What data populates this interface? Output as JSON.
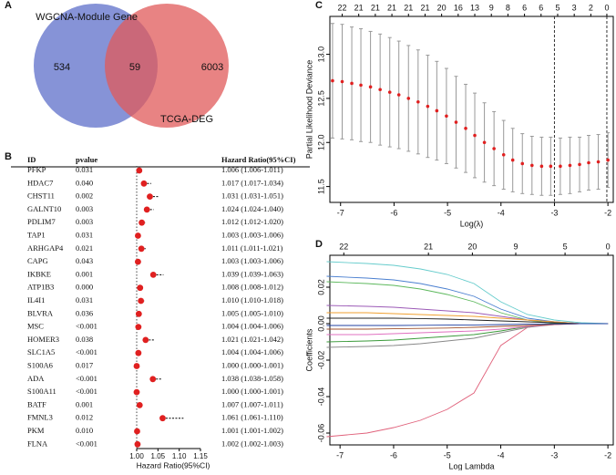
{
  "panel_labels": [
    "A",
    "B",
    "C",
    "D"
  ],
  "chart_data": [
    {
      "type": "venn",
      "sets": [
        {
          "name": "WGCNA-Module Gene",
          "color": "#5e6fc9"
        },
        {
          "name": "TCGA-DEG",
          "color": "#e05a5a"
        }
      ],
      "values": [
        534,
        59,
        6003
      ]
    },
    {
      "type": "forest",
      "columns": [
        "ID",
        "pvalue",
        "Hazard Ratio(95%CI)"
      ],
      "rows": [
        {
          "id": "PFKP",
          "pvalue": "0.031",
          "hr_text": "1.006 (1.006-1.011)",
          "hr": 1.006,
          "lower": 1.006,
          "upper": 1.011
        },
        {
          "id": "HDAC7",
          "pvalue": "0.040",
          "hr_text": "1.017 (1.017-1.034)",
          "hr": 1.017,
          "lower": 1.017,
          "upper": 1.034
        },
        {
          "id": "CHST11",
          "pvalue": "0.002",
          "hr_text": "1.031 (1.031-1.051)",
          "hr": 1.031,
          "lower": 1.031,
          "upper": 1.051
        },
        {
          "id": "GALNT10",
          "pvalue": "0.003",
          "hr_text": "1.024 (1.024-1.040)",
          "hr": 1.024,
          "lower": 1.024,
          "upper": 1.04
        },
        {
          "id": "PDLIM7",
          "pvalue": "0.003",
          "hr_text": "1.012 (1.012-1.020)",
          "hr": 1.012,
          "lower": 1.012,
          "upper": 1.02
        },
        {
          "id": "TAP1",
          "pvalue": "0.031",
          "hr_text": "1.003 (1.003-1.006)",
          "hr": 1.003,
          "lower": 1.003,
          "upper": 1.006
        },
        {
          "id": "ARHGAP4",
          "pvalue": "0.021",
          "hr_text": "1.011 (1.011-1.021)",
          "hr": 1.011,
          "lower": 1.011,
          "upper": 1.021
        },
        {
          "id": "CAPG",
          "pvalue": "0.043",
          "hr_text": "1.003 (1.003-1.006)",
          "hr": 1.003,
          "lower": 1.003,
          "upper": 1.006
        },
        {
          "id": "IKBKE",
          "pvalue": "0.001",
          "hr_text": "1.039 (1.039-1.063)",
          "hr": 1.039,
          "lower": 1.039,
          "upper": 1.063
        },
        {
          "id": "ATP1B3",
          "pvalue": "0.000",
          "hr_text": "1.008 (1.008-1.012)",
          "hr": 1.008,
          "lower": 1.008,
          "upper": 1.012
        },
        {
          "id": "IL4I1",
          "pvalue": "0.031",
          "hr_text": "1.010 (1.010-1.018)",
          "hr": 1.01,
          "lower": 1.01,
          "upper": 1.018
        },
        {
          "id": "BLVRA",
          "pvalue": "0.036",
          "hr_text": "1.005 (1.005-1.010)",
          "hr": 1.005,
          "lower": 1.005,
          "upper": 1.01
        },
        {
          "id": "MSC",
          "pvalue": "<0.001",
          "hr_text": "1.004 (1.004-1.006)",
          "hr": 1.004,
          "lower": 1.004,
          "upper": 1.006
        },
        {
          "id": "HOMER3",
          "pvalue": "0.038",
          "hr_text": "1.021 (1.021-1.042)",
          "hr": 1.021,
          "lower": 1.021,
          "upper": 1.042
        },
        {
          "id": "SLC1A5",
          "pvalue": "<0.001",
          "hr_text": "1.004 (1.004-1.006)",
          "hr": 1.004,
          "lower": 1.004,
          "upper": 1.006
        },
        {
          "id": "S100A6",
          "pvalue": "0.017",
          "hr_text": "1.000 (1.000-1.001)",
          "hr": 1.0,
          "lower": 1.0,
          "upper": 1.001
        },
        {
          "id": "ADA",
          "pvalue": "<0.001",
          "hr_text": "1.038 (1.038-1.058)",
          "hr": 1.038,
          "lower": 1.038,
          "upper": 1.058
        },
        {
          "id": "S100A11",
          "pvalue": "<0.001",
          "hr_text": "1.000 (1.000-1.001)",
          "hr": 1.0,
          "lower": 1.0,
          "upper": 1.001
        },
        {
          "id": "BATF",
          "pvalue": "0.001",
          "hr_text": "1.007 (1.007-1.011)",
          "hr": 1.007,
          "lower": 1.007,
          "upper": 1.011
        },
        {
          "id": "FMNL3",
          "pvalue": "0.012",
          "hr_text": "1.061 (1.061-1.110)",
          "hr": 1.061,
          "lower": 1.061,
          "upper": 1.11
        },
        {
          "id": "PKM",
          "pvalue": "0.010",
          "hr_text": "1.001 (1.001-1.002)",
          "hr": 1.001,
          "lower": 1.001,
          "upper": 1.002
        },
        {
          "id": "FLNA",
          "pvalue": "<0.001",
          "hr_text": "1.002 (1.002-1.003)",
          "hr": 1.002,
          "lower": 1.002,
          "upper": 1.003
        }
      ],
      "xlabel": "Hazard Ratio(95%CI)",
      "xlim": [
        0.985,
        1.165
      ],
      "xticks": [
        {
          "value": 1,
          "label": "1.00"
        },
        {
          "value": 1.05,
          "label": "1.05"
        },
        {
          "value": 1.1,
          "label": "1.10"
        },
        {
          "value": 1.15,
          "label": "1.15"
        }
      ],
      "reference": 1,
      "color": "#e02020"
    },
    {
      "type": "errorbar",
      "xlabel": "Log(λ)",
      "ylabel": "Partial Likelihood Deviance",
      "x": [
        -7.15,
        -6.97,
        -6.79,
        -6.62,
        -6.44,
        -6.26,
        -6.08,
        -5.91,
        -5.73,
        -5.55,
        -5.37,
        -5.2,
        -5.02,
        -4.84,
        -4.66,
        -4.49,
        -4.31,
        -4.13,
        -3.95,
        -3.78,
        -3.6,
        -3.42,
        -3.24,
        -3.07,
        -2.89,
        -2.71,
        -2.53,
        -2.36,
        -2.18,
        -2.0
      ],
      "values": [
        12.7,
        12.69,
        12.67,
        12.65,
        12.63,
        12.6,
        12.57,
        12.54,
        12.5,
        12.46,
        12.41,
        12.36,
        12.3,
        12.23,
        12.16,
        12.08,
        12.0,
        11.93,
        11.86,
        11.8,
        11.76,
        11.74,
        11.73,
        11.73,
        11.73,
        11.74,
        11.75,
        11.77,
        11.78,
        11.8
      ],
      "errors": [
        0.65,
        0.65,
        0.64,
        0.64,
        0.63,
        0.63,
        0.62,
        0.61,
        0.6,
        0.59,
        0.58,
        0.56,
        0.54,
        0.52,
        0.5,
        0.48,
        0.45,
        0.42,
        0.39,
        0.36,
        0.34,
        0.33,
        0.33,
        0.33,
        0.32,
        0.32,
        0.31,
        0.31,
        0.31,
        0.31
      ],
      "xlim": [
        -7.2,
        -1.9
      ],
      "xticks": [
        -7,
        -6,
        -5,
        -4,
        -3,
        -2
      ],
      "ylim": [
        11.32,
        13.43
      ],
      "yticks": [
        11.5,
        {
          "value": 12,
          "label": "12.0"
        },
        12.5,
        {
          "value": 13,
          "label": "13.0"
        }
      ],
      "top_labels": [
        22,
        21,
        21,
        21,
        21,
        21,
        20,
        16,
        13,
        9,
        8,
        6,
        6,
        5,
        3,
        2,
        0
      ],
      "top_x": [
        -6.97,
        -6.66,
        -6.35,
        -6.04,
        -5.73,
        -5.42,
        -5.11,
        -4.8,
        -4.49,
        -4.18,
        -3.87,
        -3.56,
        -3.25,
        -2.94,
        -2.63,
        -2.32,
        -2.02
      ],
      "vlines": [
        -3,
        -2.02
      ],
      "color": "#e02020"
    },
    {
      "type": "line",
      "xlabel": "Log Lambda",
      "ylabel": "Coefficients",
      "x": [
        -7.25,
        -6.5,
        -6,
        -5.5,
        -5,
        -4.5,
        -4,
        -3.5,
        -3,
        -2.5,
        -2
      ],
      "series": [
        {
          "color": "#e0607a",
          "values": [
            -0.062,
            -0.06,
            -0.057,
            -0.053,
            -0.047,
            -0.038,
            -0.012,
            -0.002,
            0,
            0,
            0
          ]
        },
        {
          "color": "#66cccc",
          "values": [
            0.034,
            0.033,
            0.032,
            0.03,
            0.027,
            0.022,
            0.012,
            0.005,
            0.002,
            0.0005,
            0
          ]
        },
        {
          "color": "#4a7fd0",
          "values": [
            0.026,
            0.025,
            0.024,
            0.022,
            0.019,
            0.015,
            0.008,
            0.003,
            0.001,
            0,
            0
          ]
        },
        {
          "color": "#5cb85c",
          "values": [
            0.023,
            0.022,
            0.021,
            0.019,
            0.016,
            0.012,
            0.006,
            0.002,
            0,
            0,
            0
          ]
        },
        {
          "color": "#9b59b6",
          "values": [
            0.01,
            0.0095,
            0.009,
            0.008,
            0.007,
            0.006,
            0.004,
            0.002,
            0.001,
            0,
            0
          ]
        },
        {
          "color": "#f0a030",
          "values": [
            0.006,
            0.006,
            0.0055,
            0.005,
            0.0045,
            0.004,
            0.003,
            0.002,
            0.001,
            0,
            0
          ]
        },
        {
          "color": "#222222",
          "values": [
            0.003,
            0.003,
            0.003,
            0.0028,
            0.0025,
            0.002,
            0.0015,
            0.001,
            0.0005,
            0,
            0
          ]
        },
        {
          "color": "#888888",
          "values": [
            -0.013,
            -0.0125,
            -0.012,
            -0.011,
            -0.0095,
            -0.008,
            -0.005,
            -0.002,
            -0.0005,
            0,
            0
          ]
        },
        {
          "color": "#3a9a3a",
          "values": [
            -0.01,
            -0.0095,
            -0.009,
            -0.008,
            -0.007,
            -0.006,
            -0.004,
            -0.0015,
            0,
            0,
            0
          ]
        },
        {
          "color": "#e070c0",
          "values": [
            -0.006,
            -0.006,
            -0.0055,
            -0.005,
            -0.0045,
            -0.004,
            -0.003,
            -0.0015,
            -0.0005,
            0,
            0
          ]
        },
        {
          "color": "#a0522d",
          "values": [
            -0.003,
            -0.003,
            -0.0028,
            -0.0026,
            -0.0024,
            -0.002,
            -0.0015,
            -0.001,
            -0.0004,
            0,
            0
          ]
        },
        {
          "color": "#2040a0",
          "values": [
            -0.001,
            -0.001,
            -0.001,
            -0.0009,
            -0.0008,
            -0.0007,
            -0.0005,
            -0.0003,
            -0.0001,
            0,
            0
          ]
        }
      ],
      "xlim": [
        -7.19,
        -1.9
      ],
      "xticks": [
        -7,
        -6,
        -5,
        -4,
        -3,
        -2
      ],
      "ylim": [
        -0.0665,
        0.0375
      ],
      "yticks": [
        -0.06,
        -0.04,
        -0.02,
        {
          "value": 0,
          "label": "0.00"
        },
        0.02
      ],
      "top_labels": [
        22,
        21,
        20,
        9,
        5,
        0
      ],
      "top_x": [
        -6.93,
        -5.35,
        -4.53,
        -3.72,
        -2.8,
        -2.0
      ]
    }
  ]
}
